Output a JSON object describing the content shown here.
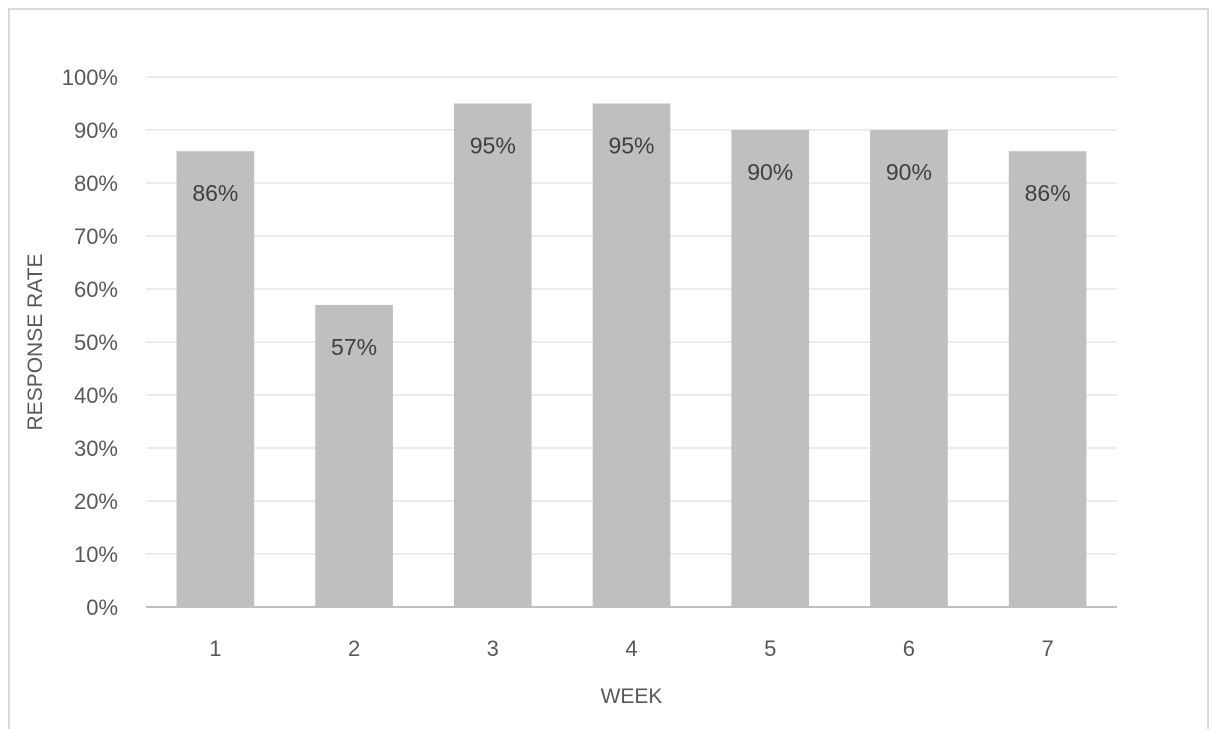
{
  "chart_data": {
    "type": "bar",
    "categories": [
      "1",
      "2",
      "3",
      "4",
      "5",
      "6",
      "7"
    ],
    "values": [
      86,
      57,
      95,
      95,
      90,
      90,
      86
    ],
    "data_labels": [
      "86%",
      "57%",
      "95%",
      "95%",
      "90%",
      "90%",
      "86%"
    ],
    "title": "",
    "xlabel": "WEEK",
    "ylabel": "RESPONSE RATE",
    "ylim": [
      0,
      100
    ],
    "yticks": [
      "0%",
      "10%",
      "20%",
      "30%",
      "40%",
      "50%",
      "60%",
      "70%",
      "80%",
      "90%",
      "100%"
    ],
    "grid": true,
    "legend": "none",
    "bar_color": "#bfbfbf",
    "gridline_color": "#ececec",
    "axis_color": "#bfbfbf",
    "text_color": "#595959"
  }
}
